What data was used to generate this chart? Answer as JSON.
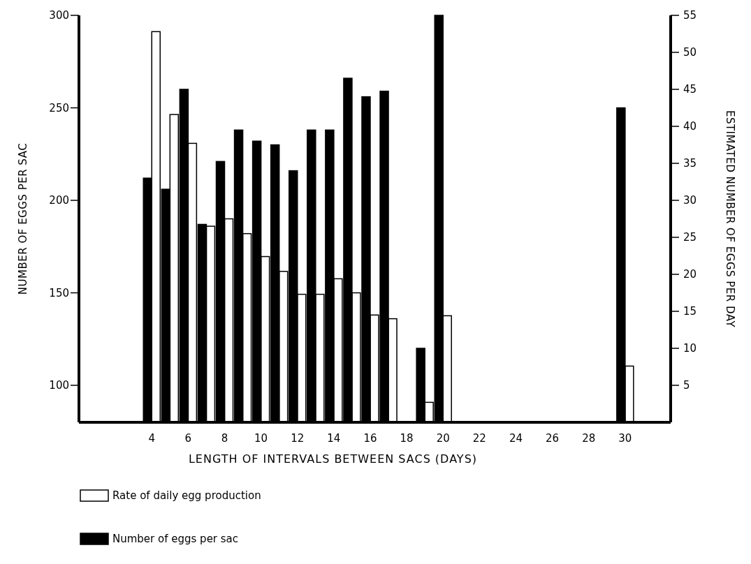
{
  "chart_data": {
    "type": "bar",
    "xlabel": "LENGTH OF INTERVALS BETWEEN SACS (DAYS)",
    "ylabel": "NUMBER OF EGGS PER SAC",
    "y2label": "ESTIMATED NUMBER OF EGGS PER DAY",
    "x": [
      4,
      5,
      6,
      7,
      8,
      9,
      10,
      11,
      12,
      13,
      14,
      15,
      16,
      17,
      19,
      20,
      30
    ],
    "series": [
      {
        "name": "Rate of daily egg production",
        "color": "#ffffff",
        "axis": "y2",
        "values": [
          52.8,
          41.6,
          37.7,
          26.5,
          27.5,
          25.5,
          22.4,
          20.4,
          17.3,
          17.3,
          19.4,
          17.5,
          14.5,
          14,
          2.7,
          14.4,
          7.6
        ]
      },
      {
        "name": "Number of eggs per sac",
        "color": "#000000",
        "values": [
          212,
          206,
          260,
          187,
          221,
          238,
          232,
          230,
          216,
          238,
          238,
          266,
          256,
          259,
          120,
          300,
          250
        ]
      }
    ],
    "xlim": [
      0,
      32.5
    ],
    "xticks": [
      4,
      6,
      8,
      10,
      12,
      14,
      16,
      18,
      20,
      22,
      24,
      26,
      28,
      30
    ],
    "ylim": [
      80,
      300
    ],
    "yticks": [
      100,
      150,
      200,
      250,
      300
    ],
    "y2lim": [
      0,
      55
    ],
    "y2ticks": [
      5,
      10,
      15,
      20,
      25,
      30,
      35,
      40,
      45,
      50,
      55
    ],
    "legend": "bottom",
    "grid": false
  }
}
